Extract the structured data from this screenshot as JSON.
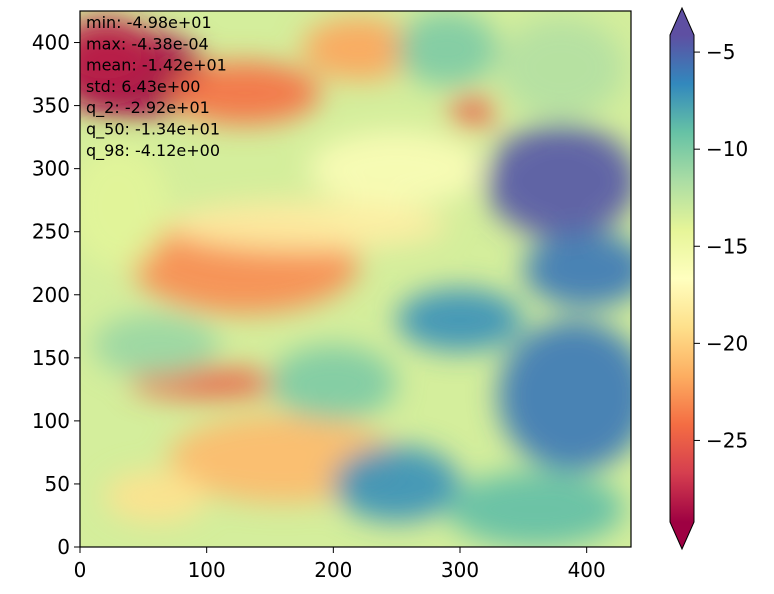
{
  "chart_data": {
    "type": "heatmap",
    "title": "",
    "xlabel": "",
    "ylabel": "",
    "xlim": [
      0,
      435
    ],
    "ylim": [
      0,
      425
    ],
    "x_ticks": [
      0,
      100,
      200,
      300,
      400
    ],
    "y_ticks": [
      0,
      50,
      100,
      150,
      200,
      250,
      300,
      350,
      400
    ],
    "colormap": "Spectral",
    "colorbar": {
      "vmin": -29.2,
      "vmax": -4.12,
      "ticks": [
        -25,
        -20,
        -15,
        -10,
        -5
      ],
      "extend": "both"
    },
    "colormap_stops": [
      "#9e0142",
      "#d53e4f",
      "#f46d43",
      "#fdae61",
      "#fee08b",
      "#ffffbf",
      "#e6f598",
      "#abdda4",
      "#66c2a5",
      "#3288bd",
      "#5e4fa2"
    ],
    "stats": [
      {
        "label": "min",
        "value": "-4.98e+01"
      },
      {
        "label": "max",
        "value": "-4.38e-04"
      },
      {
        "label": "mean",
        "value": "-1.42e+01"
      },
      {
        "label": "std",
        "value": "6.43e+00"
      },
      {
        "label": "q_2",
        "value": "-2.92e+01"
      },
      {
        "label": "q_50",
        "value": "-1.34e+01"
      },
      {
        "label": "q_98",
        "value": "-4.12e+00"
      }
    ],
    "field_regions": [
      {
        "x": 40,
        "y": 375,
        "rx": 60,
        "ry": 35,
        "value": -29
      },
      {
        "x": 20,
        "y": 390,
        "rx": 40,
        "ry": 30,
        "value": -28
      },
      {
        "x": 130,
        "y": 360,
        "rx": 60,
        "ry": 25,
        "value": -24
      },
      {
        "x": 220,
        "y": 395,
        "rx": 45,
        "ry": 25,
        "value": -22
      },
      {
        "x": 310,
        "y": 345,
        "rx": 18,
        "ry": 12,
        "value": -25
      },
      {
        "x": 130,
        "y": 225,
        "rx": 90,
        "ry": 40,
        "value": -23
      },
      {
        "x": 180,
        "y": 255,
        "rx": 110,
        "ry": 20,
        "value": -18
      },
      {
        "x": 100,
        "y": 130,
        "rx": 60,
        "ry": 12,
        "value": -25
      },
      {
        "x": 160,
        "y": 70,
        "rx": 90,
        "ry": 35,
        "value": -21
      },
      {
        "x": 60,
        "y": 40,
        "rx": 40,
        "ry": 20,
        "value": -19
      },
      {
        "x": 30,
        "y": 270,
        "rx": 40,
        "ry": 50,
        "value": -14
      },
      {
        "x": 380,
        "y": 290,
        "rx": 60,
        "ry": 45,
        "value": -4.5
      },
      {
        "x": 400,
        "y": 220,
        "rx": 50,
        "ry": 30,
        "value": -6
      },
      {
        "x": 300,
        "y": 180,
        "rx": 50,
        "ry": 25,
        "value": -7
      },
      {
        "x": 390,
        "y": 120,
        "rx": 60,
        "ry": 60,
        "value": -6
      },
      {
        "x": 250,
        "y": 50,
        "rx": 50,
        "ry": 30,
        "value": -7
      },
      {
        "x": 360,
        "y": 30,
        "rx": 70,
        "ry": 30,
        "value": -9
      },
      {
        "x": 200,
        "y": 130,
        "rx": 50,
        "ry": 30,
        "value": -10
      },
      {
        "x": 60,
        "y": 160,
        "rx": 50,
        "ry": 25,
        "value": -11
      },
      {
        "x": 250,
        "y": 300,
        "rx": 70,
        "ry": 30,
        "value": -16
      },
      {
        "x": 290,
        "y": 395,
        "rx": 40,
        "ry": 30,
        "value": -10
      },
      {
        "x": 380,
        "y": 380,
        "rx": 50,
        "ry": 40,
        "value": -12
      }
    ]
  }
}
